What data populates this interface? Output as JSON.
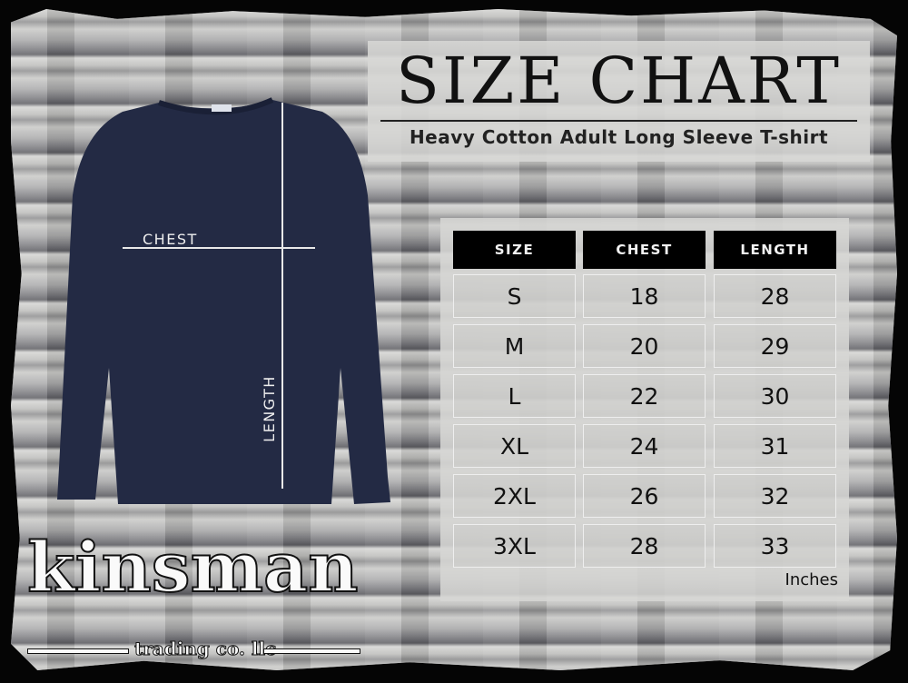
{
  "header": {
    "title": "SIZE CHART",
    "subtitle": "Heavy Cotton Adult Long Sleeve T-shirt"
  },
  "diagram": {
    "chest_label": "CHEST",
    "length_label": "LENGTH",
    "shirt_color": "#232a44"
  },
  "table": {
    "columns": [
      "SIZE",
      "CHEST",
      "LENGTH"
    ],
    "rows": [
      [
        "S",
        "18",
        "28"
      ],
      [
        "M",
        "20",
        "29"
      ],
      [
        "L",
        "22",
        "30"
      ],
      [
        "XL",
        "24",
        "31"
      ],
      [
        "2XL",
        "26",
        "32"
      ],
      [
        "3XL",
        "28",
        "33"
      ]
    ],
    "units": "Inches"
  },
  "logo": {
    "name": "kinsman",
    "tagline": "trading co. llc"
  }
}
